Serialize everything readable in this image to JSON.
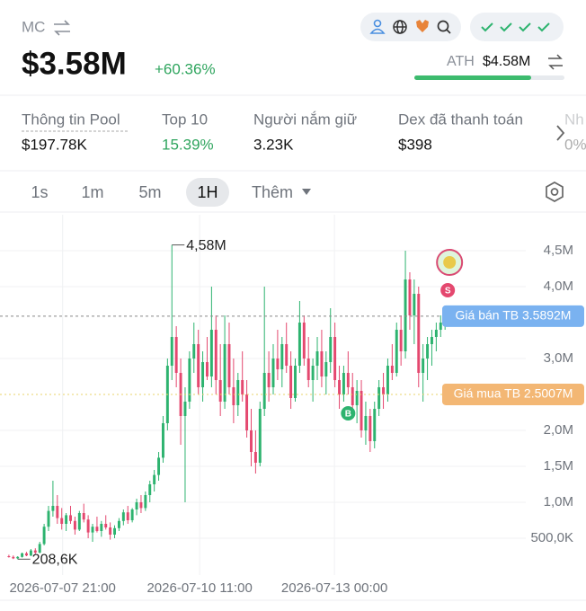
{
  "header": {
    "label": "MC",
    "price": "$3.58M",
    "change": "+60.36%",
    "ath_label": "ATH",
    "ath_value": "$4.58M"
  },
  "stats": [
    {
      "label": "Thông tin Pool",
      "value": "$197.78K"
    },
    {
      "label": "Top 10",
      "value": "15.39%"
    },
    {
      "label": "Người nắm giữ",
      "value": "3.23K"
    },
    {
      "label": "Dex đã thanh toán",
      "value": "$398"
    },
    {
      "label": "Nh",
      "value": "0%"
    }
  ],
  "tabs": [
    "1s",
    "1m",
    "5m",
    "1H",
    "Thêm"
  ],
  "selected_tab": "1H",
  "chart_data": {
    "type": "candlestick",
    "up_color": "#2db36f",
    "down_color": "#e4486f",
    "grid": true,
    "ylim": [
      0,
      5
    ],
    "yticks": [
      {
        "value": 0.5,
        "label": "500,0K"
      },
      {
        "value": 1,
        "label": "1,0M"
      },
      {
        "value": 1.5,
        "label": "1,5M"
      },
      {
        "value": 2,
        "label": "2,0M"
      },
      {
        "value": 3,
        "label": "3,0M"
      },
      {
        "value": 4,
        "label": "4,0M"
      },
      {
        "value": 4.5,
        "label": "4,5M"
      }
    ],
    "xlim": [
      -1.2,
      100.8
    ],
    "xticks": [
      {
        "value": 12.2,
        "label": "2026-07-07 21:00"
      },
      {
        "value": 43.3,
        "label": "2026-07-10 11:00"
      },
      {
        "value": 73.9,
        "label": "2026-07-13 00:00"
      }
    ],
    "reference_lines": [
      {
        "value": 3.5892,
        "label": "Giá bán TB 3.5892M",
        "color": "#7ab2f0"
      },
      {
        "value": 2.5007,
        "label": "Giá mua TB 2.5007M",
        "color": "#f3b774"
      }
    ],
    "annotations": [
      {
        "value": 4.58,
        "label": "4,58M",
        "at": "high"
      },
      {
        "value": 0.2086,
        "label": "208,6K",
        "at": "low"
      }
    ],
    "buy_marker": "B",
    "sell_marker": "S",
    "candles": [
      [
        0.25,
        0.27,
        0.23,
        0.24
      ],
      [
        0.24,
        0.26,
        0.21,
        0.22
      ],
      [
        0.22,
        0.25,
        0.2086,
        0.24
      ],
      [
        0.24,
        0.3,
        0.23,
        0.29
      ],
      [
        0.29,
        0.31,
        0.25,
        0.26
      ],
      [
        0.26,
        0.35,
        0.25,
        0.33
      ],
      [
        0.33,
        0.36,
        0.28,
        0.3
      ],
      [
        0.3,
        0.45,
        0.29,
        0.42
      ],
      [
        0.42,
        0.7,
        0.4,
        0.66
      ],
      [
        0.66,
        0.95,
        0.6,
        0.88
      ],
      [
        0.88,
        1.3,
        0.8,
        0.95
      ],
      [
        0.95,
        1.1,
        0.7,
        0.78
      ],
      [
        0.78,
        0.92,
        0.62,
        0.7
      ],
      [
        0.7,
        0.85,
        0.6,
        0.82
      ],
      [
        0.82,
        0.95,
        0.7,
        0.74
      ],
      [
        0.74,
        0.8,
        0.55,
        0.62
      ],
      [
        0.62,
        0.88,
        0.6,
        0.85
      ],
      [
        0.85,
        0.98,
        0.72,
        0.76
      ],
      [
        0.76,
        0.82,
        0.5,
        0.58
      ],
      [
        0.58,
        0.7,
        0.45,
        0.66
      ],
      [
        0.66,
        0.8,
        0.58,
        0.6
      ],
      [
        0.6,
        0.74,
        0.52,
        0.7
      ],
      [
        0.7,
        0.82,
        0.62,
        0.65
      ],
      [
        0.65,
        0.72,
        0.48,
        0.55
      ],
      [
        0.55,
        0.68,
        0.5,
        0.64
      ],
      [
        0.64,
        0.78,
        0.6,
        0.74
      ],
      [
        0.74,
        0.9,
        0.68,
        0.86
      ],
      [
        0.86,
        0.95,
        0.7,
        0.75
      ],
      [
        0.75,
        0.92,
        0.72,
        0.9
      ],
      [
        0.9,
        1.05,
        0.82,
        1.0
      ],
      [
        1.0,
        1.1,
        0.85,
        0.92
      ],
      [
        0.92,
        1.15,
        0.88,
        1.1
      ],
      [
        1.1,
        1.3,
        1.0,
        1.25
      ],
      [
        1.25,
        1.45,
        1.15,
        1.38
      ],
      [
        1.38,
        1.7,
        1.3,
        1.62
      ],
      [
        1.62,
        2.2,
        1.55,
        2.1
      ],
      [
        2.1,
        3.0,
        2.0,
        2.9
      ],
      [
        2.9,
        4.58,
        2.7,
        3.3
      ],
      [
        3.3,
        3.45,
        2.6,
        2.8
      ],
      [
        2.8,
        3.0,
        1.8,
        2.2
      ],
      [
        2.2,
        2.6,
        1.0,
        2.4
      ],
      [
        2.4,
        3.1,
        2.3,
        3.0
      ],
      [
        3.0,
        3.5,
        2.8,
        3.2
      ],
      [
        3.2,
        3.4,
        2.5,
        2.6
      ],
      [
        2.6,
        3.1,
        2.4,
        2.95
      ],
      [
        2.95,
        3.3,
        2.7,
        2.75
      ],
      [
        2.75,
        4.0,
        2.6,
        3.4
      ],
      [
        3.4,
        3.6,
        2.5,
        2.7
      ],
      [
        2.7,
        3.2,
        2.2,
        2.4
      ],
      [
        2.4,
        3.6,
        2.3,
        3.2
      ],
      [
        3.2,
        3.5,
        2.5,
        2.6
      ],
      [
        2.6,
        3.0,
        2.1,
        2.35
      ],
      [
        2.35,
        2.8,
        2.2,
        2.7
      ],
      [
        2.7,
        3.1,
        2.4,
        2.5
      ],
      [
        2.5,
        2.7,
        1.9,
        2.0
      ],
      [
        2.0,
        2.3,
        1.5,
        1.7
      ],
      [
        1.7,
        2.0,
        1.4,
        1.55
      ],
      [
        1.55,
        2.4,
        1.5,
        2.3
      ],
      [
        2.3,
        4.0,
        2.2,
        2.8
      ],
      [
        2.8,
        3.1,
        2.4,
        2.6
      ],
      [
        2.6,
        3.2,
        2.5,
        3.0
      ],
      [
        3.0,
        3.4,
        2.7,
        2.85
      ],
      [
        2.85,
        3.3,
        2.6,
        3.2
      ],
      [
        3.2,
        3.5,
        2.8,
        2.9
      ],
      [
        2.9,
        3.1,
        2.3,
        2.45
      ],
      [
        2.45,
        3.0,
        2.4,
        2.9
      ],
      [
        2.9,
        3.8,
        2.8,
        3.5
      ],
      [
        3.5,
        3.6,
        2.9,
        3.0
      ],
      [
        3.0,
        3.3,
        2.6,
        2.7
      ],
      [
        2.7,
        3.0,
        2.4,
        2.9
      ],
      [
        2.9,
        3.3,
        2.7,
        3.1
      ],
      [
        3.1,
        3.4,
        2.6,
        2.75
      ],
      [
        2.75,
        3.1,
        2.5,
        2.95
      ],
      [
        2.95,
        3.7,
        2.8,
        3.3
      ],
      [
        3.3,
        3.5,
        2.6,
        2.7
      ],
      [
        2.7,
        2.9,
        2.3,
        2.5
      ],
      [
        2.5,
        2.9,
        2.4,
        2.8
      ],
      [
        2.8,
        3.1,
        2.5,
        2.6
      ],
      [
        2.6,
        2.8,
        2.2,
        2.35
      ],
      [
        2.35,
        2.7,
        2.1,
        2.55
      ],
      [
        2.55,
        2.7,
        1.9,
        2.0
      ],
      [
        2.0,
        2.4,
        1.8,
        2.2
      ],
      [
        2.2,
        2.3,
        1.7,
        1.85
      ],
      [
        1.85,
        2.4,
        1.75,
        2.3
      ],
      [
        2.3,
        2.7,
        2.2,
        2.6
      ],
      [
        2.6,
        2.8,
        2.3,
        2.5
      ],
      [
        2.5,
        3.0,
        2.4,
        2.9
      ],
      [
        2.9,
        3.2,
        2.7,
        2.8
      ],
      [
        2.8,
        3.5,
        2.75,
        3.4
      ],
      [
        3.4,
        3.6,
        2.9,
        3.1
      ],
      [
        3.1,
        4.5,
        3.0,
        4.1
      ],
      [
        4.1,
        4.2,
        3.4,
        3.6
      ],
      [
        3.6,
        4.1,
        3.2,
        3.9
      ],
      [
        3.9,
        4.0,
        2.6,
        2.8
      ],
      [
        2.8,
        3.2,
        2.4,
        3.0
      ],
      [
        3.0,
        3.3,
        2.7,
        3.2
      ],
      [
        3.2,
        3.4,
        2.9,
        3.3
      ],
      [
        3.3,
        3.5,
        3.1,
        3.4
      ],
      [
        3.4,
        3.6,
        3.3,
        3.5
      ],
      [
        3.5,
        3.7,
        3.4,
        3.58
      ]
    ]
  }
}
